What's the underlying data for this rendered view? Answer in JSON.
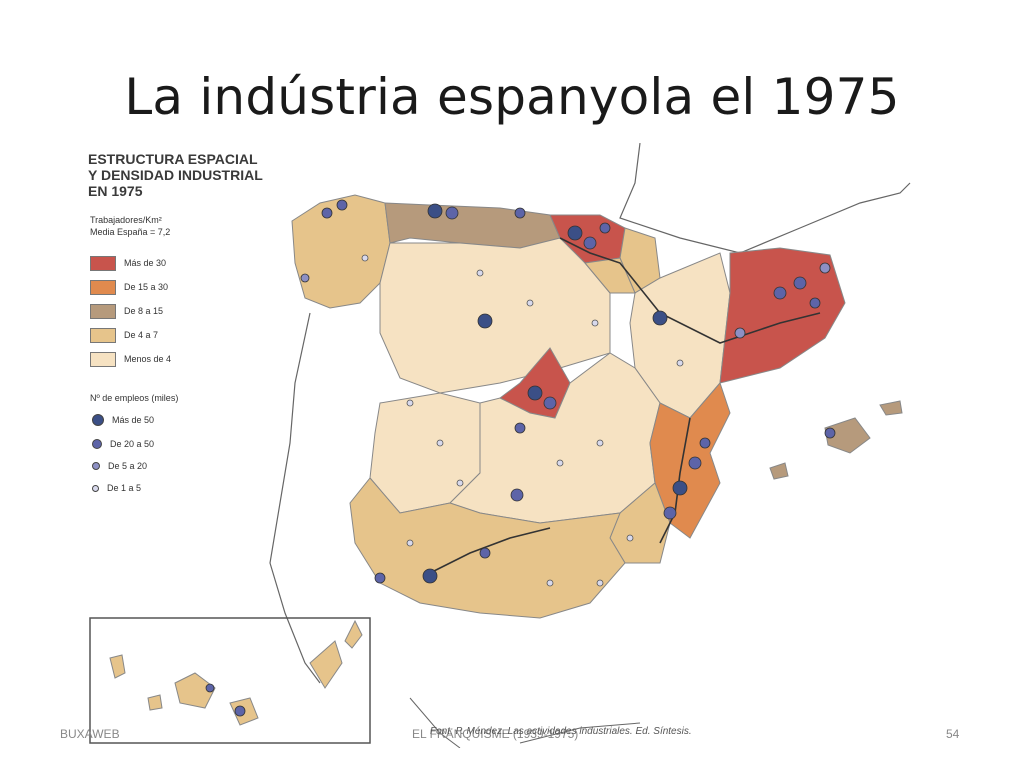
{
  "slide": {
    "title": "La indústria espanyola el 1975",
    "footer_left": "BUXAWEB",
    "footer_center": "EL FRANQUISME (1939-1975)",
    "footer_page": "54"
  },
  "map": {
    "legend_title_lines": [
      "ESTRUCTURA ESPACIAL",
      "Y DENSIDAD INDUSTRIAL",
      "EN 1975"
    ],
    "density_heading": "Trabajadores/Km²",
    "density_mean": "Media España = 7,2",
    "density_classes": [
      {
        "label": "Más de 30",
        "color": "#c8544c"
      },
      {
        "label": "De 15 a 30",
        "color": "#e08a4e"
      },
      {
        "label": "De 8 a 15",
        "color": "#b69a7c"
      },
      {
        "label": "De 4 a 7",
        "color": "#e6c48b"
      },
      {
        "label": "Menos de 4",
        "color": "#f6e2c2"
      }
    ],
    "employment_heading": "Nº de empleos (miles)",
    "employment_classes": [
      {
        "label": "Más de 50",
        "color": "#3b4f86"
      },
      {
        "label": "De 20 a 50",
        "color": "#5d64a8"
      },
      {
        "label": "De 5 a 20",
        "color": "#8d90c4"
      },
      {
        "label": "De 1 a 5",
        "color": "#d8d9ec"
      }
    ],
    "source_caption": "Font: P. Méndez. Las actividades industriales. Ed. Síntesis."
  }
}
